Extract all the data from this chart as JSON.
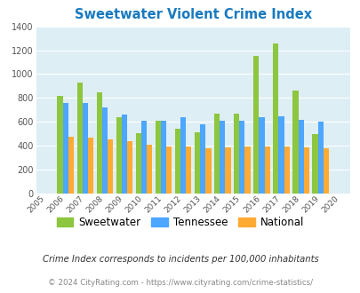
{
  "title": "Sweetwater Violent Crime Index",
  "years": [
    2005,
    2006,
    2007,
    2008,
    2009,
    2010,
    2011,
    2012,
    2013,
    2014,
    2015,
    2016,
    2017,
    2018,
    2019,
    2020
  ],
  "sweetwater": [
    null,
    820,
    930,
    845,
    635,
    505,
    610,
    545,
    515,
    670,
    670,
    1150,
    1255,
    860,
    495,
    null
  ],
  "tennessee": [
    null,
    760,
    755,
    720,
    660,
    610,
    610,
    640,
    580,
    610,
    610,
    635,
    648,
    618,
    600,
    null
  ],
  "national": [
    null,
    475,
    470,
    450,
    435,
    405,
    395,
    395,
    375,
    385,
    390,
    390,
    395,
    385,
    380,
    null
  ],
  "ylim": [
    0,
    1400
  ],
  "yticks": [
    0,
    200,
    400,
    600,
    800,
    1000,
    1200,
    1400
  ],
  "color_sweetwater": "#8dc63f",
  "color_tennessee": "#4da6ff",
  "color_national": "#ffaa33",
  "bg_color": "#ddeef5",
  "title_color": "#1a7abf",
  "grid_color": "#ffffff",
  "footnote1": "Crime Index corresponds to incidents per 100,000 inhabitants",
  "footnote2": "© 2024 CityRating.com - https://www.cityrating.com/crime-statistics/",
  "bar_width": 0.28
}
